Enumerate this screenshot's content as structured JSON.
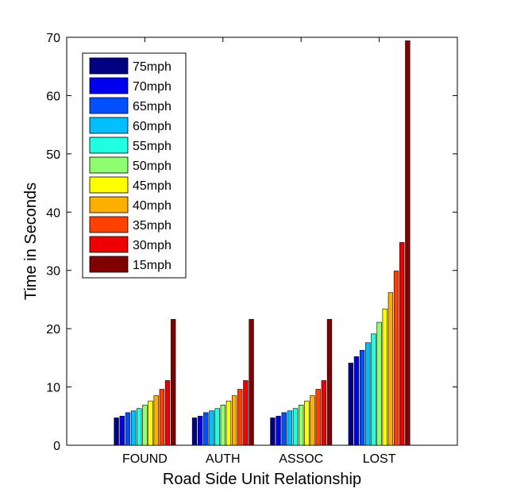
{
  "chart_data": {
    "type": "bar",
    "title": "",
    "xlabel": "Road Side Unit Relationship",
    "ylabel": "Time in Seconds",
    "ylim": [
      0,
      70
    ],
    "yticks": [
      0,
      10,
      20,
      30,
      40,
      50,
      60,
      70
    ],
    "grid": false,
    "legend_position": "top-left",
    "categories": [
      "FOUND",
      "AUTH",
      "ASSOC",
      "LOST"
    ],
    "series": [
      {
        "name": "75mph",
        "color": "#000080",
        "values": [
          4.7,
          4.7,
          4.7,
          14.1
        ]
      },
      {
        "name": "70mph",
        "color": "#0000ee",
        "values": [
          5.0,
          5.0,
          5.0,
          15.2
        ]
      },
      {
        "name": "65mph",
        "color": "#0050ff",
        "values": [
          5.6,
          5.6,
          5.6,
          16.3
        ]
      },
      {
        "name": "60mph",
        "color": "#00bfff",
        "values": [
          5.9,
          5.9,
          5.9,
          17.6
        ]
      },
      {
        "name": "55mph",
        "color": "#20ffdf",
        "values": [
          6.3,
          6.3,
          6.3,
          19.1
        ]
      },
      {
        "name": "50mph",
        "color": "#8fff70",
        "values": [
          6.9,
          6.9,
          6.9,
          21.1
        ]
      },
      {
        "name": "45mph",
        "color": "#ffff00",
        "values": [
          7.6,
          7.6,
          7.6,
          23.4
        ]
      },
      {
        "name": "40mph",
        "color": "#ffaf00",
        "values": [
          8.5,
          8.5,
          8.5,
          26.2
        ]
      },
      {
        "name": "35mph",
        "color": "#ff4000",
        "values": [
          9.6,
          9.6,
          9.6,
          29.9
        ]
      },
      {
        "name": "30mph",
        "color": "#ee0000",
        "values": [
          11.1,
          11.1,
          11.1,
          34.8
        ]
      },
      {
        "name": "15mph",
        "color": "#800000",
        "values": [
          21.6,
          21.6,
          21.6,
          69.4
        ]
      }
    ]
  }
}
